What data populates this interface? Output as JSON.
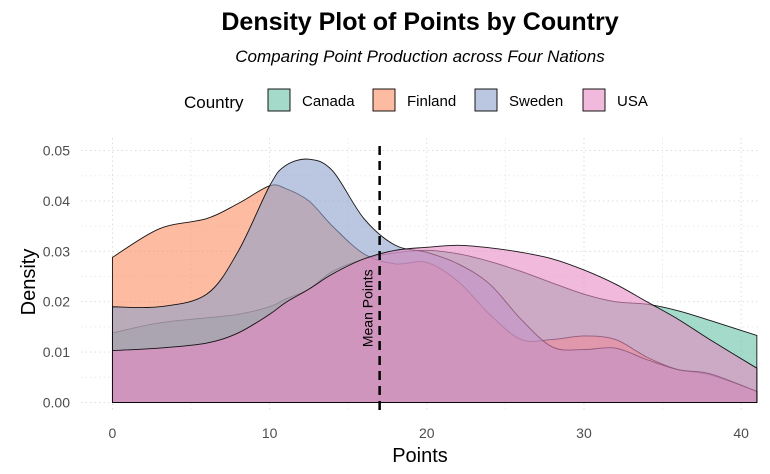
{
  "chart_data": {
    "type": "area",
    "title": "Density Plot of Points by Country",
    "subtitle": "Comparing Point Production across Four Nations",
    "xlabel": "Points",
    "ylabel": "Density",
    "xlim": [
      -2,
      41.2
    ],
    "ylim": [
      -0.0015,
      0.0525
    ],
    "x_ticks": [
      0,
      10,
      20,
      30,
      40
    ],
    "y_ticks": [
      0.0,
      0.01,
      0.02,
      0.03,
      0.04,
      0.05
    ],
    "y_tick_labels": [
      "0.00",
      "0.01",
      "0.02",
      "0.03",
      "0.04",
      "0.05"
    ],
    "grid": true,
    "legend": {
      "title": "Country",
      "position": "top"
    },
    "annotation": {
      "text": "Mean Points",
      "x": 17
    },
    "x": [
      0,
      3,
      6,
      8,
      10,
      11,
      12.5,
      14,
      16,
      18,
      20,
      22,
      24,
      26,
      28,
      30,
      32,
      34,
      36,
      38,
      41
    ],
    "series": [
      {
        "name": "Canada",
        "color": "#66c2a5",
        "values": [
          0.0138,
          0.0158,
          0.0168,
          0.0175,
          0.019,
          0.0205,
          0.0225,
          0.026,
          0.0285,
          0.0297,
          0.0302,
          0.0295,
          0.028,
          0.026,
          0.0237,
          0.0215,
          0.02,
          0.0195,
          0.0182,
          0.0163,
          0.0133
        ]
      },
      {
        "name": "Finland",
        "color": "#fc8d62",
        "values": [
          0.0288,
          0.0345,
          0.0365,
          0.0395,
          0.043,
          0.0425,
          0.04,
          0.035,
          0.0295,
          0.0275,
          0.0278,
          0.024,
          0.0175,
          0.0125,
          0.0125,
          0.0132,
          0.0125,
          0.009,
          0.0065,
          0.0055,
          0.0022
        ]
      },
      {
        "name": "Sweden",
        "color": "#8da0cb",
        "values": [
          0.019,
          0.019,
          0.0215,
          0.03,
          0.043,
          0.047,
          0.0483,
          0.046,
          0.0365,
          0.0312,
          0.0298,
          0.0275,
          0.0235,
          0.0165,
          0.011,
          0.0105,
          0.0108,
          0.0085,
          0.0065,
          0.0057,
          0.0022
        ]
      },
      {
        "name": "USA",
        "color": "#e78ac3",
        "values": [
          0.0103,
          0.0108,
          0.0118,
          0.0138,
          0.0175,
          0.0198,
          0.0225,
          0.0255,
          0.0285,
          0.0302,
          0.0308,
          0.0312,
          0.0307,
          0.0298,
          0.0285,
          0.0263,
          0.0235,
          0.02,
          0.0165,
          0.0125,
          0.0068
        ]
      }
    ]
  }
}
